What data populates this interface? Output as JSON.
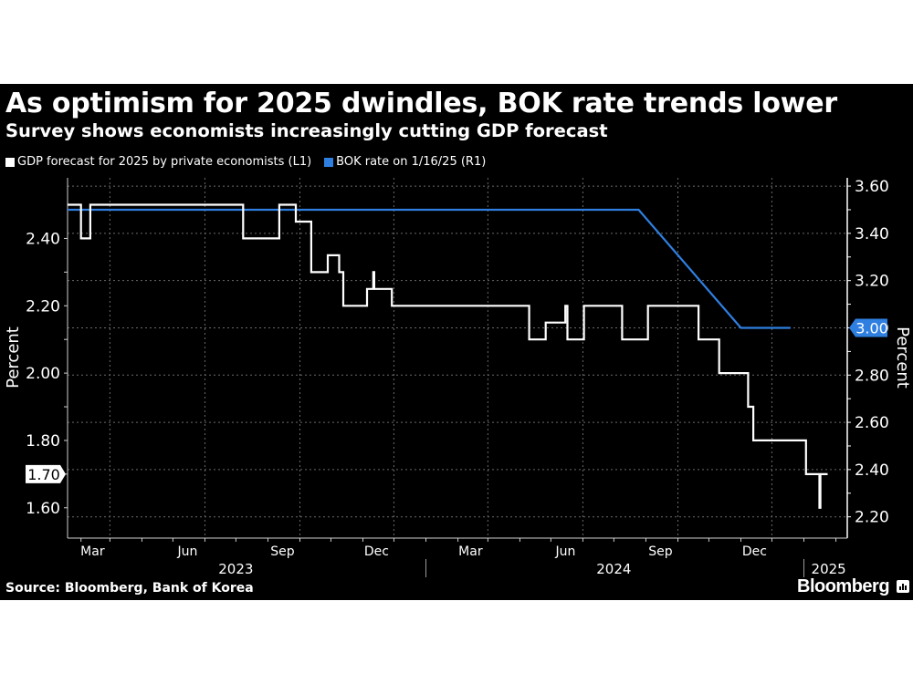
{
  "header": {
    "title": "As optimism for 2025 dwindles, BOK rate trends lower",
    "subtitle": "Survey shows economists increasingly cutting GDP forecast"
  },
  "legend": [
    {
      "label": "GDP forecast for 2025 by private economists (L1)",
      "color": "#ffffff"
    },
    {
      "label": "BOK rate on 1/16/25 (R1)",
      "color": "#2f7fe0"
    }
  ],
  "footer": {
    "source": "Source: Bloomberg, Bank of Korea",
    "brand": "Bloomberg"
  },
  "chart_data": {
    "type": "line",
    "title": "As optimism for 2025 dwindles, BOK rate trends lower",
    "subtitle": "Survey shows economists increasingly cutting GDP forecast",
    "xlabel": "",
    "ylabel_left": "Percent",
    "ylabel_right": "Percent",
    "x_range": [
      "2023-01-19",
      "2025-02-12"
    ],
    "ylim_left": [
      1.51,
      2.58
    ],
    "ylim_right": [
      2.11,
      3.635
    ],
    "left_ticks": [
      1.6,
      1.8,
      2.0,
      2.2,
      2.4
    ],
    "left_tick_labels": [
      "1.60",
      "1.80",
      "2.00",
      "2.20",
      "2.40"
    ],
    "right_ticks": [
      2.2,
      2.4,
      2.6,
      2.8,
      3.0,
      3.2,
      3.4,
      3.6
    ],
    "right_tick_labels": [
      "2.20",
      "2.40",
      "2.60",
      "2.80",
      "3.00",
      "3.20",
      "3.40",
      "3.60"
    ],
    "x_ticks": [
      {
        "date": "2023-03-01",
        "label": "Mar"
      },
      {
        "date": "2023-06-01",
        "label": "Jun"
      },
      {
        "date": "2023-09-01",
        "label": "Sep"
      },
      {
        "date": "2023-12-01",
        "label": "Dec"
      },
      {
        "date": "2024-03-01",
        "label": "Mar"
      },
      {
        "date": "2024-06-01",
        "label": "Jun"
      },
      {
        "date": "2024-09-01",
        "label": "Sep"
      },
      {
        "date": "2024-12-01",
        "label": "Dec"
      }
    ],
    "year_labels": [
      {
        "label": "2023",
        "center": "2023-07-01",
        "sep_after": "2024-01-01"
      },
      {
        "label": "2024",
        "center": "2024-07-01",
        "sep_after": "2025-01-01"
      },
      {
        "label": "2025",
        "center": "2025-01-25",
        "sep_after": null
      }
    ],
    "grid": true,
    "legend_position": "top-left",
    "last_value_labels": [
      {
        "series": "GDP forecast for 2025 by private economists (L1)",
        "value": "1.70",
        "axis": "left"
      },
      {
        "series": "BOK rate on 1/16/25 (R1)",
        "value": "3.00",
        "axis": "right"
      }
    ],
    "series": [
      {
        "name": "GDP forecast for 2025 by private economists (L1)",
        "axis": "left",
        "color": "#ffffff",
        "step": true,
        "points": [
          [
            "2023-01-19",
            2.5
          ],
          [
            "2023-02-01",
            2.4
          ],
          [
            "2023-02-10",
            2.5
          ],
          [
            "2023-07-08",
            2.4
          ],
          [
            "2023-08-12",
            2.5
          ],
          [
            "2023-08-28",
            2.45
          ],
          [
            "2023-09-12",
            2.3
          ],
          [
            "2023-09-28",
            2.35
          ],
          [
            "2023-10-09",
            2.3
          ],
          [
            "2023-10-13",
            2.2
          ],
          [
            "2023-11-05",
            2.25
          ],
          [
            "2023-11-11",
            2.3
          ],
          [
            "2023-11-12",
            2.25
          ],
          [
            "2023-11-29",
            2.2
          ],
          [
            "2024-04-10",
            2.1
          ],
          [
            "2024-04-26",
            2.15
          ],
          [
            "2024-05-15",
            2.2
          ],
          [
            "2024-05-17",
            2.1
          ],
          [
            "2024-06-02",
            2.2
          ],
          [
            "2024-07-09",
            2.1
          ],
          [
            "2024-08-03",
            2.2
          ],
          [
            "2024-09-21",
            2.1
          ],
          [
            "2024-10-11",
            2.0
          ],
          [
            "2024-11-08",
            1.9
          ],
          [
            "2024-11-13",
            1.8
          ],
          [
            "2025-01-03",
            1.7
          ],
          [
            "2025-01-16",
            1.6
          ],
          [
            "2025-01-17",
            1.7
          ],
          [
            "2025-01-24",
            1.7
          ]
        ]
      },
      {
        "name": "BOK rate on 1/16/25 (R1)",
        "axis": "right",
        "color": "#2f7fe0",
        "step": false,
        "points": [
          [
            "2023-01-19",
            3.5
          ],
          [
            "2024-07-25",
            3.5
          ],
          [
            "2024-11-01",
            3.0
          ],
          [
            "2024-12-19",
            3.0
          ]
        ]
      }
    ]
  }
}
